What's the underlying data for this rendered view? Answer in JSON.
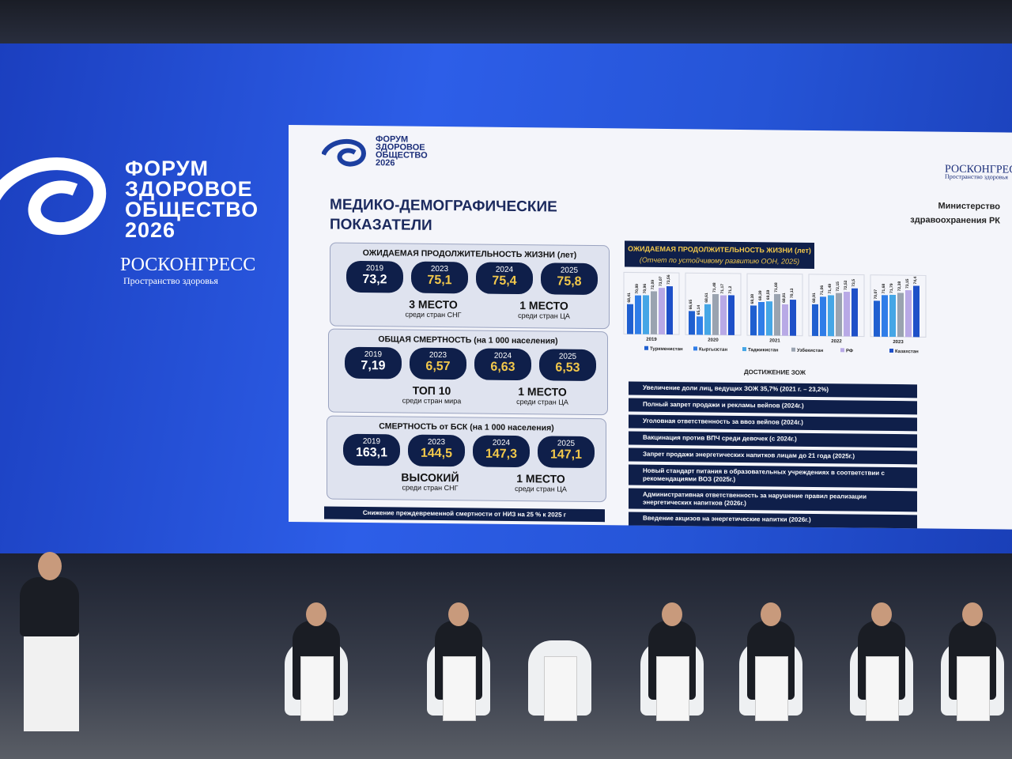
{
  "banner": {
    "logo_lines": [
      "ФОРУМ",
      "ЗДОРОВОЕ",
      "ОБЩЕСТВО",
      "2026"
    ],
    "sponsor": "РОСКОНГРЕСС",
    "sponsor_sub": "Пространство здоровья"
  },
  "slide": {
    "logo_lines": [
      "ФОРУМ",
      "ЗДОРОВОЕ",
      "ОБЩЕСТВО",
      "2026"
    ],
    "sponsor": "РОСКОНГРЕСС",
    "sponsor_sub": "Пространство здоровья",
    "title_lines": [
      "МЕДИКО-ДЕМОГРАФИЧЕСКИЕ",
      "ПОКАЗАТЕЛИ"
    ],
    "ministry_lines": [
      "Министерство",
      "здравоохранения РК"
    ],
    "panels": [
      {
        "title": "ОЖИДАЕМАЯ ПРОДОЛЖИТЕЛЬНОСТЬ ЖИЗНИ (лет)",
        "stats": [
          {
            "year": "2019",
            "value": "73,2"
          },
          {
            "year": "2023",
            "value": "75,1"
          },
          {
            "year": "2024",
            "value": "75,4"
          },
          {
            "year": "2025",
            "value": "75,8"
          }
        ],
        "ranks": [
          {
            "rank": "3 МЕСТО",
            "note": "среди стран СНГ"
          },
          {
            "rank": "1 МЕСТО",
            "note": "среди стран ЦА"
          }
        ]
      },
      {
        "title": "ОБЩАЯ СМЕРТНОСТЬ (на 1 000 населения)",
        "stats": [
          {
            "year": "2019",
            "value": "7,19"
          },
          {
            "year": "2023",
            "value": "6,57"
          },
          {
            "year": "2024",
            "value": "6,63"
          },
          {
            "year": "2025",
            "value": "6,53"
          }
        ],
        "ranks": [
          {
            "rank": "ТОП 10",
            "note": "среди стран мира"
          },
          {
            "rank": "1 МЕСТО",
            "note": "среди стран ЦА"
          }
        ]
      },
      {
        "title": "СМЕРТНОСТЬ от БСК  (на 1 000 населения)",
        "stats": [
          {
            "year": "2019",
            "value": "163,1"
          },
          {
            "year": "2023",
            "value": "144,5"
          },
          {
            "year": "2024",
            "value": "147,3"
          },
          {
            "year": "2025",
            "value": "147,1"
          }
        ],
        "ranks": [
          {
            "rank": "ВЫСОКИЙ",
            "note": "среди стран СНГ"
          },
          {
            "rank": "1 МЕСТО",
            "note": "среди стран ЦА"
          }
        ]
      }
    ],
    "footer_note": "Снижение преждевременной смертности от НИЗ на 25 % к 2025 г",
    "chart": {
      "type": "bar",
      "title": "ОЖИДАЕМАЯ ПРОДОЛЖИТЕЛЬНОСТЬ ЖИЗНИ (лет)",
      "subtitle": "(Отчет по устойчивому развитию ООН, 2025)",
      "categories": [
        "2019",
        "2020",
        "2021",
        "2022",
        "2023"
      ],
      "ylim": [
        60,
        76
      ],
      "series": [
        {
          "name": "Туркменистан",
          "color": "#1f5fd0",
          "values": [
            68.41,
            66.65,
            68.38,
            68.91,
            70.07
          ],
          "value_labels": [
            "68,41",
            "66,65",
            "68,38",
            "68,91",
            "70,07"
          ]
        },
        {
          "name": "Кыргызстан",
          "color": "#2f7de8",
          "values": [
            70.89,
            65.14,
            69.39,
            71.06,
            71.68
          ],
          "value_labels": [
            "70,89",
            "65,14",
            "69,39",
            "71,06",
            "71,68"
          ]
        },
        {
          "name": "Таджикистан",
          "color": "#45a6e6",
          "values": [
            70.96,
            68.61,
            69.59,
            71.49,
            71.79
          ],
          "value_labels": [
            "70,96",
            "68,61",
            "69,59",
            "71,49",
            "71,79"
          ]
        },
        {
          "name": "Узбекистан",
          "color": "#9aa3b0",
          "values": [
            72.09,
            71.48,
            71.68,
            72.15,
            72.38
          ],
          "value_labels": [
            "72,09",
            "71,48",
            "71,68",
            "72,15",
            "72,38"
          ]
        },
        {
          "name": "РФ",
          "color": "#b8a9e6",
          "values": [
            73.07,
            71.17,
            68.81,
            72.52,
            73.15
          ],
          "value_labels": [
            "73,07",
            "71,17",
            "68,81",
            "72,52",
            "73,15"
          ]
        },
        {
          "name": "Казахстан",
          "color": "#1e50c8",
          "values": [
            73.56,
            71.2,
            70.13,
            73.5,
            74.4
          ],
          "value_labels": [
            "73,56",
            "71,2",
            "70,13",
            "73,5",
            "74,4"
          ]
        }
      ]
    },
    "achievements": {
      "title": "ДОСТИЖЕНИЕ ЗОЖ",
      "items": [
        "Увеличение доли лиц, ведущих ЗОЖ 35,7% (2021 г. – 23,2%)",
        "Полный запрет продажи и рекламы вейпов (2024г.)",
        "Уголовная ответственность за ввоз вейпов (2024г.)",
        "Вакцинация против ВПЧ среди девочек (с 2024г.)",
        "Запрет продажи энергетических напитков лицам до 21 года (2025г.)",
        "Новый стандарт питания в образовательных учреждениях в соответствии с рекомендациями ВОЗ (2025г.)",
        "Административная ответственность за нарушение правил реализации энергетических напитков (2026г.)",
        "Введение акцизов на энергетические напитки (2026г.)"
      ]
    }
  }
}
